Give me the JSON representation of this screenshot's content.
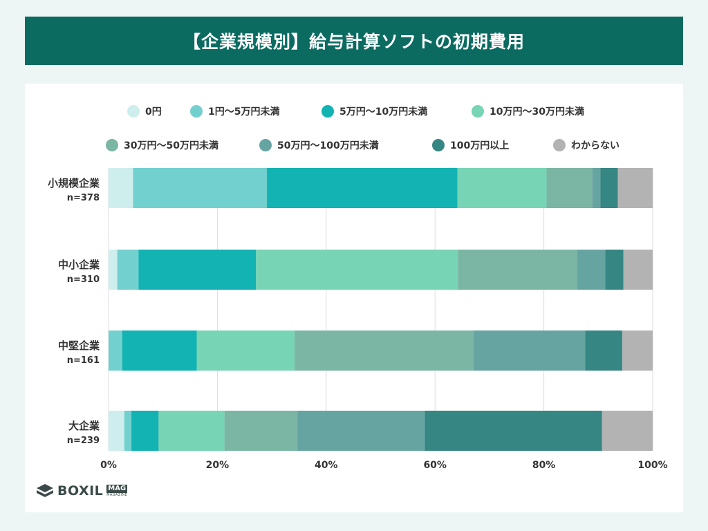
{
  "header": {
    "title": "【企業規模別】給与計算ソフトの初期費用"
  },
  "brand": {
    "logo_text": "BOXIL",
    "logo_badge": "MAG",
    "logo_sub": "MAGAZINE"
  },
  "chart_data": {
    "type": "bar",
    "orientation": "horizontal",
    "stacked": true,
    "title": "【企業規模別】給与計算ソフトの初期費用",
    "categories": [
      "小規模企業",
      "中小企業",
      "中堅企業",
      "大企業"
    ],
    "category_n": [
      "n=378",
      "n=310",
      "n=161",
      "n=239"
    ],
    "xlim": [
      0,
      100
    ],
    "x_ticks": [
      "0%",
      "20%",
      "40%",
      "60%",
      "80%",
      "100%"
    ],
    "legend_position": "top",
    "grid": true,
    "series": [
      {
        "name": "0円",
        "color": "#cdeeed",
        "values": [
          4.5,
          1.6,
          0.0,
          2.9
        ]
      },
      {
        "name": "1円〜5万円未満",
        "color": "#72d0cf",
        "values": [
          24.6,
          3.9,
          2.5,
          1.3
        ]
      },
      {
        "name": "5万円〜10万円未満",
        "color": "#12b3b2",
        "values": [
          35.0,
          21.6,
          13.7,
          5.0
        ]
      },
      {
        "name": "10万円〜30万円未満",
        "color": "#77d4b4",
        "values": [
          16.4,
          37.1,
          18.0,
          12.1
        ]
      },
      {
        "name": "30万円〜50万円未満",
        "color": "#7ab6a3",
        "values": [
          8.4,
          21.9,
          32.9,
          13.4
        ]
      },
      {
        "name": "50万円〜100万円未満",
        "color": "#66a4a2",
        "values": [
          1.5,
          5.2,
          20.5,
          23.4
        ]
      },
      {
        "name": "100万円以上",
        "color": "#368683",
        "values": [
          3.2,
          3.3,
          6.8,
          32.6
        ]
      },
      {
        "name": "わからない",
        "color": "#b3b3b3",
        "values": [
          6.4,
          5.4,
          5.6,
          9.3
        ]
      }
    ]
  }
}
